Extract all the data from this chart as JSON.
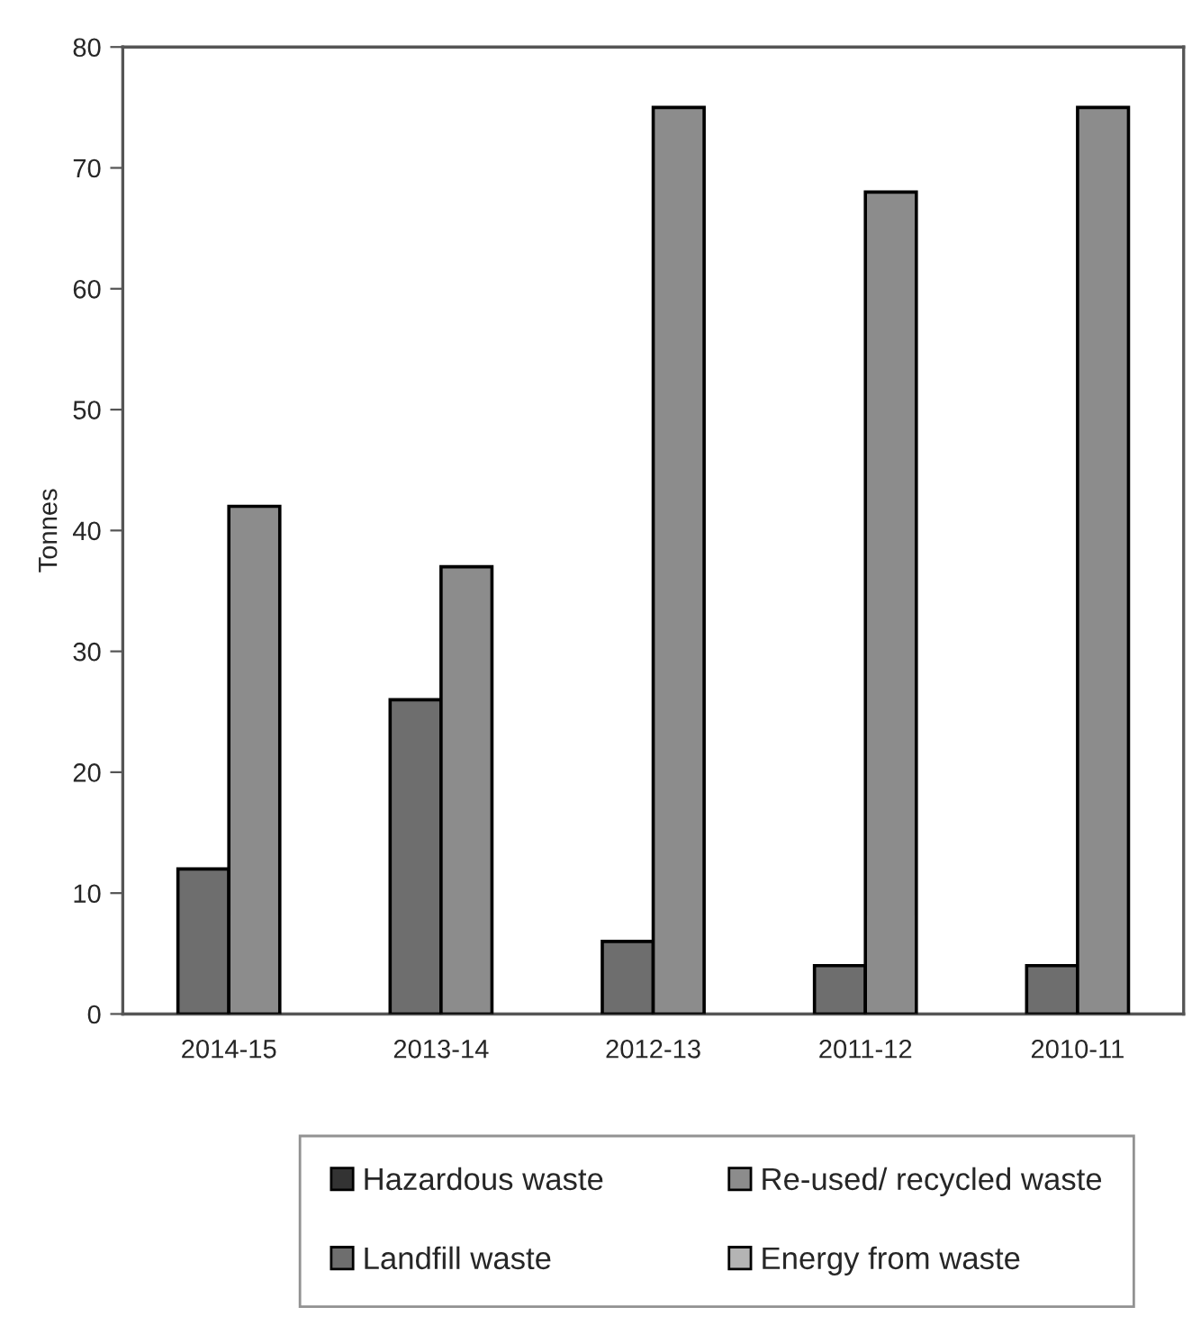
{
  "chart_data": {
    "type": "bar",
    "ylabel": "Tonnes",
    "categories": [
      "2014-15",
      "2013-14",
      "2012-13",
      "2011-12",
      "2010-11"
    ],
    "series": [
      {
        "name": "Hazardous waste",
        "color": "#333333",
        "values": [
          null,
          null,
          null,
          null,
          null
        ]
      },
      {
        "name": "Landfill waste",
        "color": "#6e6e6e",
        "values": [
          12,
          26,
          6,
          4,
          4
        ]
      },
      {
        "name": "Re-used/ recycled waste",
        "color": "#8c8c8c",
        "values": [
          42,
          37,
          75,
          68,
          75
        ]
      },
      {
        "name": "Energy from waste",
        "color": "#b4b4b4",
        "values": [
          null,
          null,
          null,
          null,
          null
        ]
      }
    ],
    "ylim": [
      0,
      80
    ],
    "yticks": [
      0,
      10,
      20,
      30,
      40,
      50,
      60,
      70,
      80
    ],
    "grid": false,
    "legend": "bottom"
  }
}
